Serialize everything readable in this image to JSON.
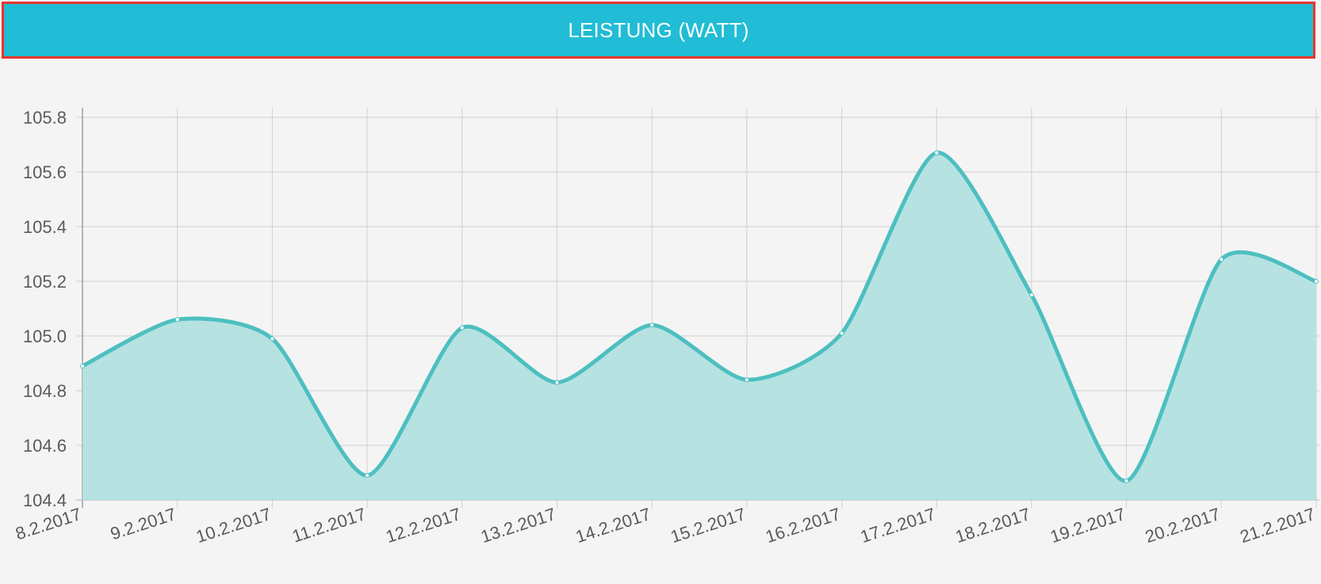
{
  "header": {
    "title": "LEISTUNG (WATT)"
  },
  "colors": {
    "header_bg": "#21bcd5",
    "header_border": "#e8352b",
    "line": "#4dbfc0",
    "fill": "#b2e0e0",
    "grid": "#d0d0d0",
    "background": "#f4f4f4"
  },
  "chart_data": {
    "type": "area",
    "title": "LEISTUNG (WATT)",
    "xlabel": "",
    "ylabel": "",
    "categories": [
      "8.2.2017",
      "9.2.2017",
      "10.2.2017",
      "11.2.2017",
      "12.2.2017",
      "13.2.2017",
      "14.2.2017",
      "15.2.2017",
      "16.2.2017",
      "17.2.2017",
      "18.2.2017",
      "19.2.2017",
      "20.2.2017",
      "21.2.2017"
    ],
    "series": [
      {
        "values": [
          104.89,
          105.06,
          104.99,
          104.49,
          105.03,
          104.83,
          105.04,
          104.84,
          105.01,
          105.67,
          105.15,
          104.47,
          105.28,
          105.2
        ]
      }
    ],
    "yticks": [
      "105.8",
      "105.6",
      "105.4",
      "105.2",
      "105.0",
      "104.8",
      "104.6",
      "104.4"
    ],
    "ylim": [
      104.4,
      105.8
    ],
    "grid": true,
    "legend": "none"
  }
}
